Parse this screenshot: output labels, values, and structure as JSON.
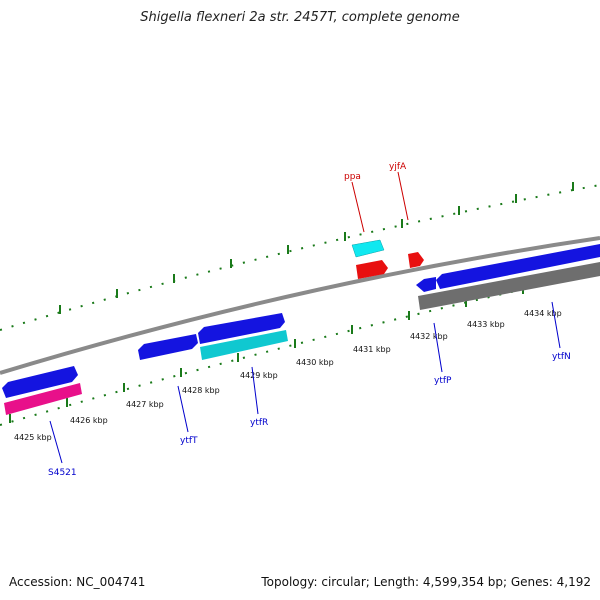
{
  "title": "Shigella flexneri 2a str. 2457T, complete genome",
  "footer": {
    "accession": "Accession: NC_004741",
    "summary": "Topology: circular; Length: 4,599,354 bp; Genes: 4,192"
  },
  "colors": {
    "backbone": "#8a8a8a",
    "tick": "#1a7a1a",
    "cds_forward": "#1414e0",
    "cds_reverse": "#1414e0",
    "rna": "#10c8d0",
    "pseudo": "#e8108a",
    "red_gene": "#e81010",
    "gray_gene": "#6e6e6e",
    "label_blue": "#0000cc",
    "label_red": "#cc0000"
  },
  "tick_labels": [
    "4425 kbp",
    "4426 kbp",
    "4427 kbp",
    "4428 kbp",
    "4429 kbp",
    "4430 kbp",
    "4431 kbp",
    "4432 kbp",
    "4433 kbp",
    "4434 kbp"
  ],
  "gene_labels": {
    "S4521": "S4521",
    "ytfT": "ytfT",
    "ytfR": "ytfR",
    "ytfP": "ytfP",
    "ytfN": "ytfN",
    "ppa": "ppa",
    "yjfA": "yjfA"
  }
}
